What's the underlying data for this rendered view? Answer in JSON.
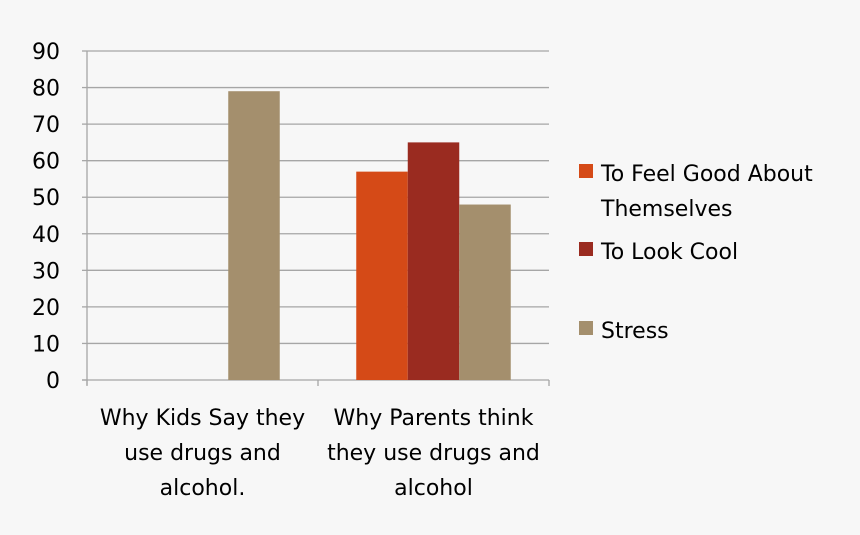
{
  "chart_data": {
    "type": "bar",
    "categories": [
      "Why Kids Say they use drugs and alcohol.",
      "Why Parents think they use drugs and alcohol"
    ],
    "category_lines": [
      [
        "Why Kids Say they",
        "use drugs and",
        "alcohol."
      ],
      [
        "Why Parents think",
        "they use drugs and",
        "alcohol"
      ]
    ],
    "series": [
      {
        "name": "To Feel Good About Themselves",
        "legend_lines": [
          "To Feel Good About",
          "Themselves"
        ],
        "color": "#d54a17",
        "values": [
          0,
          57
        ]
      },
      {
        "name": "To Look Cool",
        "legend_lines": [
          "To Look Cool"
        ],
        "color": "#9a2b20",
        "values": [
          0,
          65
        ]
      },
      {
        "name": "Stress",
        "legend_lines": [
          "Stress"
        ],
        "color": "#a48f6d",
        "values": [
          79,
          48
        ]
      }
    ],
    "ylim": [
      0,
      90
    ],
    "yticks": [
      0,
      10,
      20,
      30,
      40,
      50,
      60,
      70,
      80,
      90
    ],
    "grid": true,
    "legend_position": "right",
    "background": "#f7f7f7"
  }
}
